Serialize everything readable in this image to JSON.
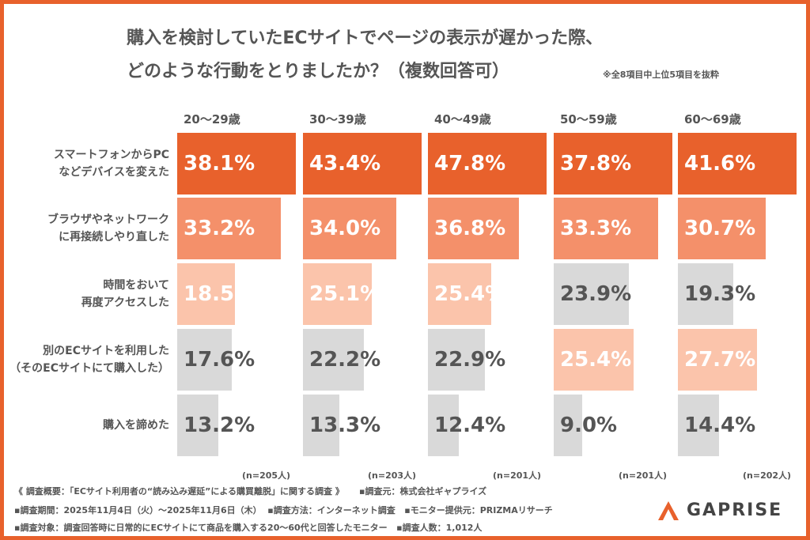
{
  "title_line1": "購入を検討していたECサイトでページの表示が遅かった際、",
  "title_line2": "どのような行動をとりましたか？（複数回答可）",
  "note": "※全8項目中上位5項目を抜粋",
  "colors": {
    "rank1": "#e8612c",
    "rank2": "#f4906a",
    "rank3": "#fbc4ab",
    "other": "#d9d9d9",
    "frame": "#e8612c"
  },
  "chart_data": {
    "type": "bar",
    "orientation": "horizontal",
    "categories": [
      "スマートフォンからPC\nなどデバイスを変えた",
      "ブラウザやネットワーク\nに再接続しやり直した",
      "時間をおいて\n再度アクセスした",
      "別のECサイトを利用した\n（そのECサイトにて購入した）",
      "購入を諦めた"
    ],
    "unit": "%",
    "series": [
      {
        "name": "20〜29歳",
        "n": "(n=205人)",
        "values": [
          38.1,
          33.2,
          18.5,
          17.6,
          13.2
        ]
      },
      {
        "name": "30〜39歳",
        "n": "(n=203人)",
        "values": [
          43.4,
          34.0,
          25.1,
          22.2,
          13.3
        ]
      },
      {
        "name": "40〜49歳",
        "n": "(n=201人)",
        "values": [
          47.8,
          36.8,
          25.4,
          22.9,
          12.4
        ]
      },
      {
        "name": "50〜59歳",
        "n": "(n=201人)",
        "values": [
          37.8,
          33.3,
          23.9,
          25.4,
          9.0
        ]
      },
      {
        "name": "60〜69歳",
        "n": "(n=202人)",
        "values": [
          41.6,
          30.7,
          19.3,
          27.7,
          14.4
        ]
      }
    ]
  },
  "footer": {
    "line1a": "《 調査概要：「ECサイト利用者の“読み込み遅延”による購買離脱」に関する調査 》",
    "line1b": "▪調査元：株式会社ギャプライズ",
    "line2a": "▪調査期間：2025年11月4日（火）〜2025年11月6日（木）",
    "line2b": "▪調査方法：インターネット調査",
    "line2c": "▪モニター提供元：PRIZMAリサーチ",
    "line3a": "▪調査対象：調査回答時に日常的にECサイトにて商品を購入する20〜60代と回答したモニター",
    "line3b": "▪調査人数：1,012人"
  },
  "logo": {
    "text": "GAPRISE"
  }
}
